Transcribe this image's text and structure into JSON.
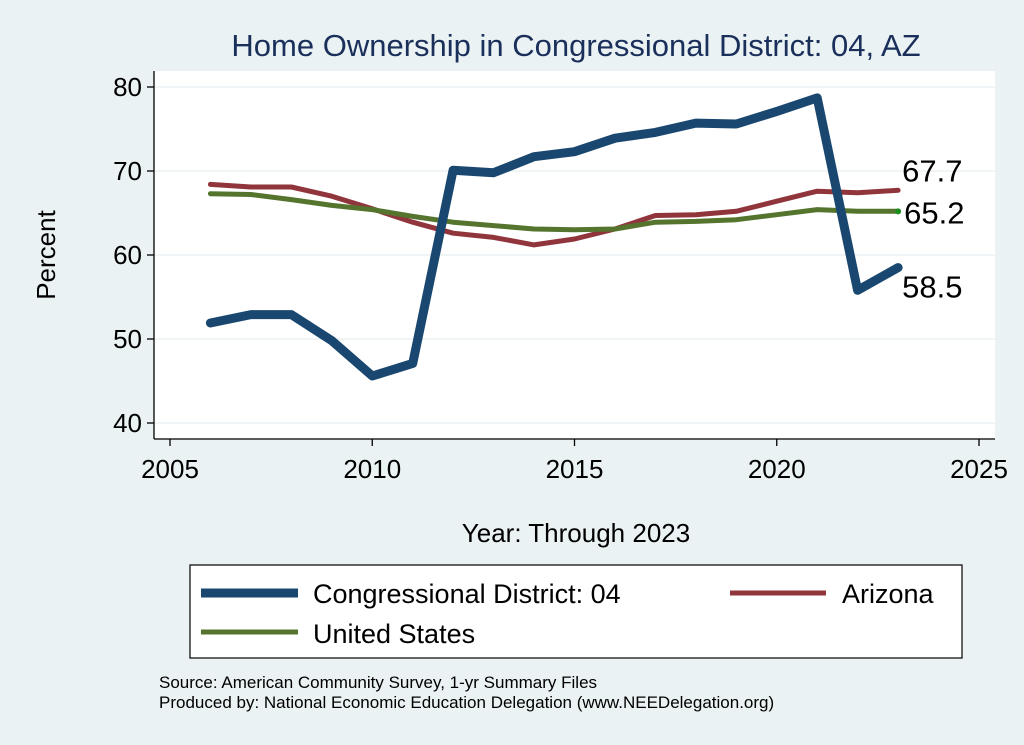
{
  "chart_data": {
    "type": "line",
    "title": "Home Ownership in Congressional District:  04, AZ",
    "xlabel": "Year: Through 2023",
    "ylabel": "Percent",
    "xlim": [
      2005,
      2025
    ],
    "ylim": [
      40,
      80
    ],
    "xticks": [
      2005,
      2010,
      2015,
      2020,
      2025
    ],
    "yticks": [
      40,
      50,
      60,
      70,
      80
    ],
    "grid": "horizontal",
    "legend_position": "bottom",
    "x": [
      2006,
      2007,
      2008,
      2009,
      2010,
      2011,
      2012,
      2013,
      2014,
      2015,
      2016,
      2017,
      2018,
      2019,
      2020,
      2021,
      2022,
      2023
    ],
    "series": [
      {
        "name": "Congressional District:  04",
        "color": "#1a476f",
        "values": [
          51.9,
          52.9,
          52.9,
          49.8,
          45.6,
          47.1,
          70.1,
          69.8,
          71.7,
          72.3,
          73.9,
          74.6,
          75.7,
          75.6,
          77.1,
          78.7,
          55.8,
          58.5
        ],
        "end_label": "58.5"
      },
      {
        "name": "Arizona",
        "color": "#90353b",
        "values": [
          68.4,
          68.1,
          68.1,
          67.0,
          65.5,
          63.9,
          62.6,
          62.1,
          61.2,
          61.9,
          63.1,
          64.7,
          64.8,
          65.2,
          66.4,
          67.6,
          67.4,
          67.7
        ],
        "end_label": "67.7"
      },
      {
        "name": "United States",
        "color": "#55752f",
        "values": [
          67.3,
          67.2,
          66.6,
          65.9,
          65.4,
          64.6,
          63.9,
          63.5,
          63.1,
          63.0,
          63.1,
          63.9,
          64.0,
          64.2,
          64.8,
          65.4,
          65.2,
          65.2
        ],
        "end_label": "65.2"
      }
    ],
    "notes": [
      "Source: American Community Survey, 1-yr Summary Files",
      "Produced by: National Economic Education Delegation (www.NEEDelegation.org)"
    ]
  }
}
